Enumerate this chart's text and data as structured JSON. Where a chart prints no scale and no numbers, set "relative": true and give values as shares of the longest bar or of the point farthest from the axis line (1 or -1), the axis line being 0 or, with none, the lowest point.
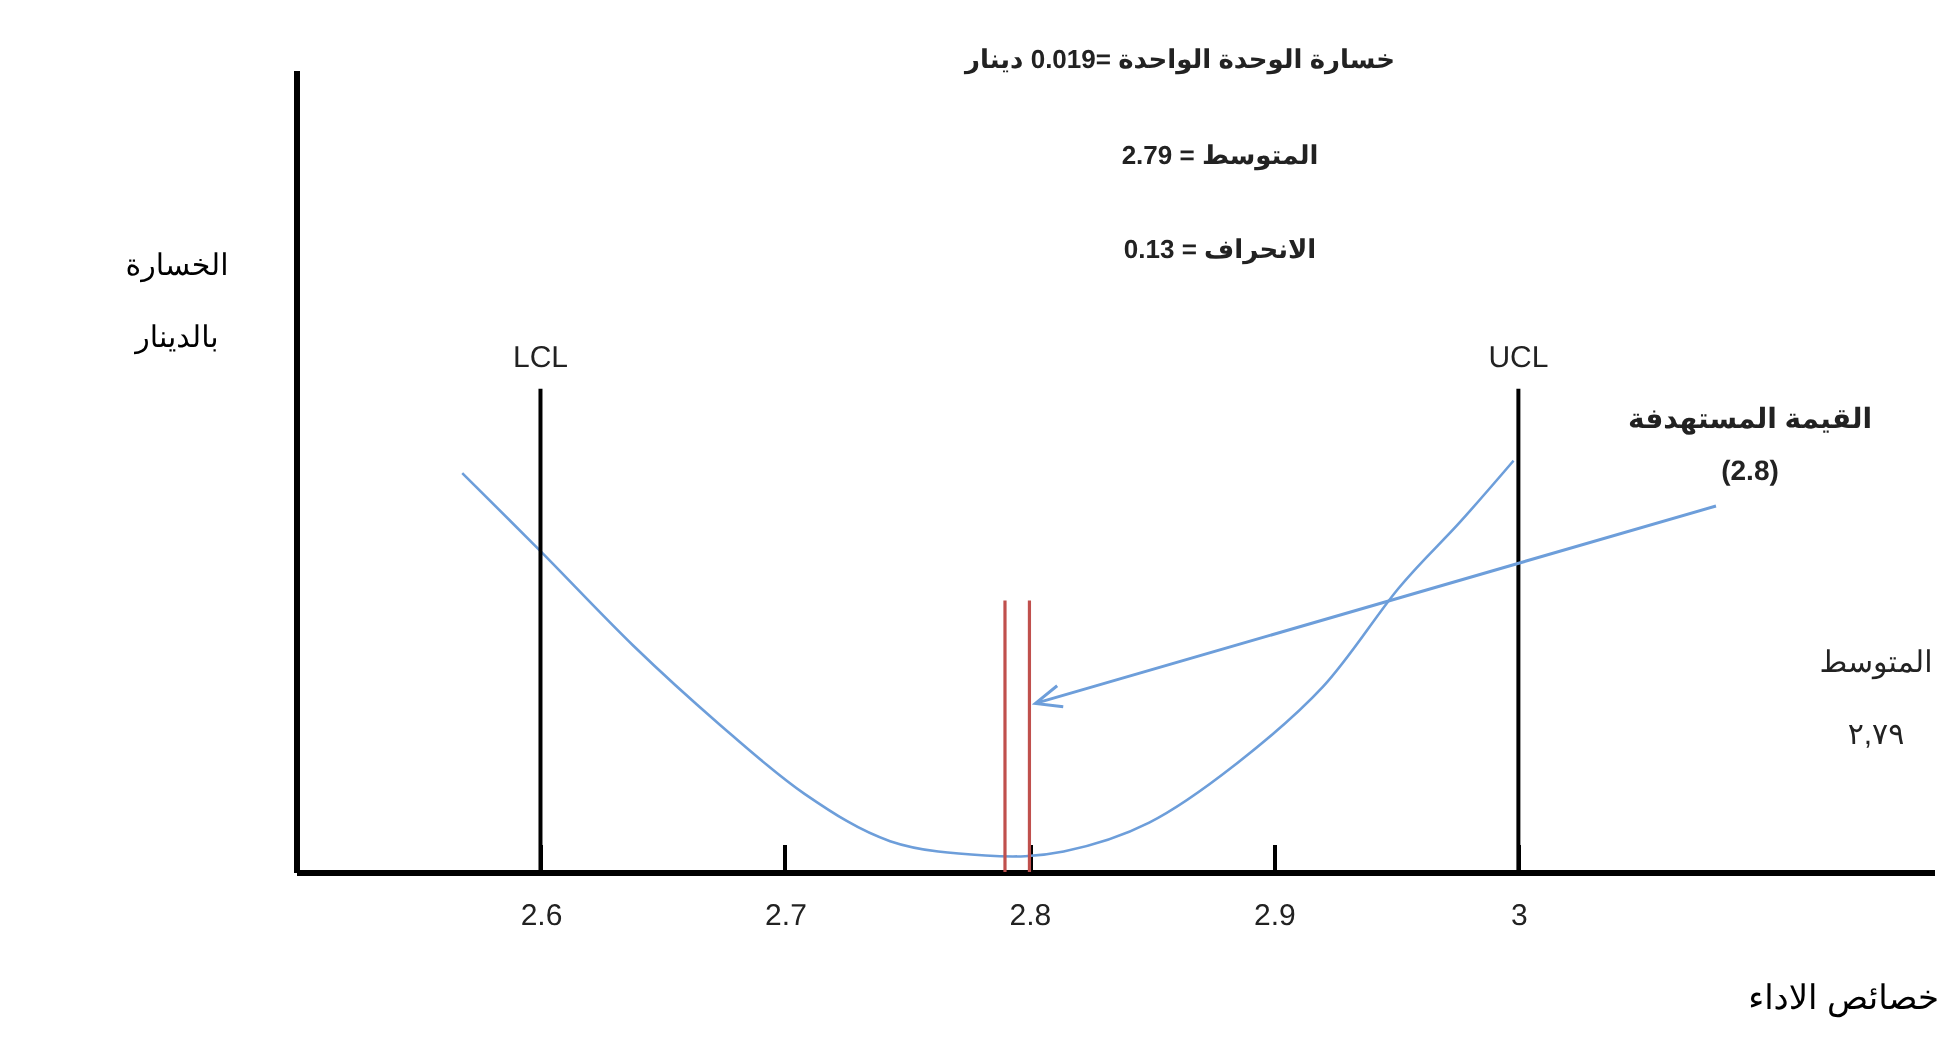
{
  "chart_data": {
    "type": "line",
    "relative": true,
    "xlabel": "خصائص الاداء",
    "ylabel": "الخسارة بالدينار",
    "annotations": [
      "خسارة الوحدة الواحدة =0.019 دينار",
      "المتوسط = 2.79",
      "الانحراف = 0.13",
      {
        "text": "القيمة المستهدفة (2.8)",
        "x": 2.8,
        "y": 0.41
      }
    ],
    "x": [
      2.568,
      2.6,
      2.638,
      2.673,
      2.708,
      2.743,
      2.782,
      2.814,
      2.849,
      2.884,
      2.92,
      2.951,
      2.976,
      2.998
    ],
    "series": [
      {
        "color": "#6d9eda",
        "values": [
          0.97,
          0.78,
          0.55,
          0.36,
          0.19,
          0.075,
          0.04,
          0.05,
          0.12,
          0.26,
          0.45,
          0.69,
          0.85,
          1
        ]
      }
    ],
    "xlim": [
      2.5,
      3.17
    ],
    "xticks": [
      2.6,
      2.7,
      2.8,
      2.9,
      3
    ],
    "ref_lines": [
      {
        "axis": "x",
        "value": 2.6,
        "label": "LCL",
        "color": "#000000"
      },
      {
        "axis": "x",
        "value": 3,
        "label": "UCL",
        "color": "#000000"
      },
      {
        "axis": "x",
        "value": 2.79,
        "label": "المتوسط ٢,٧٩",
        "color": "#c0504d"
      },
      {
        "axis": "x",
        "value": 2.8,
        "color": "#c0504d"
      }
    ],
    "line_style": "solid"
  }
}
